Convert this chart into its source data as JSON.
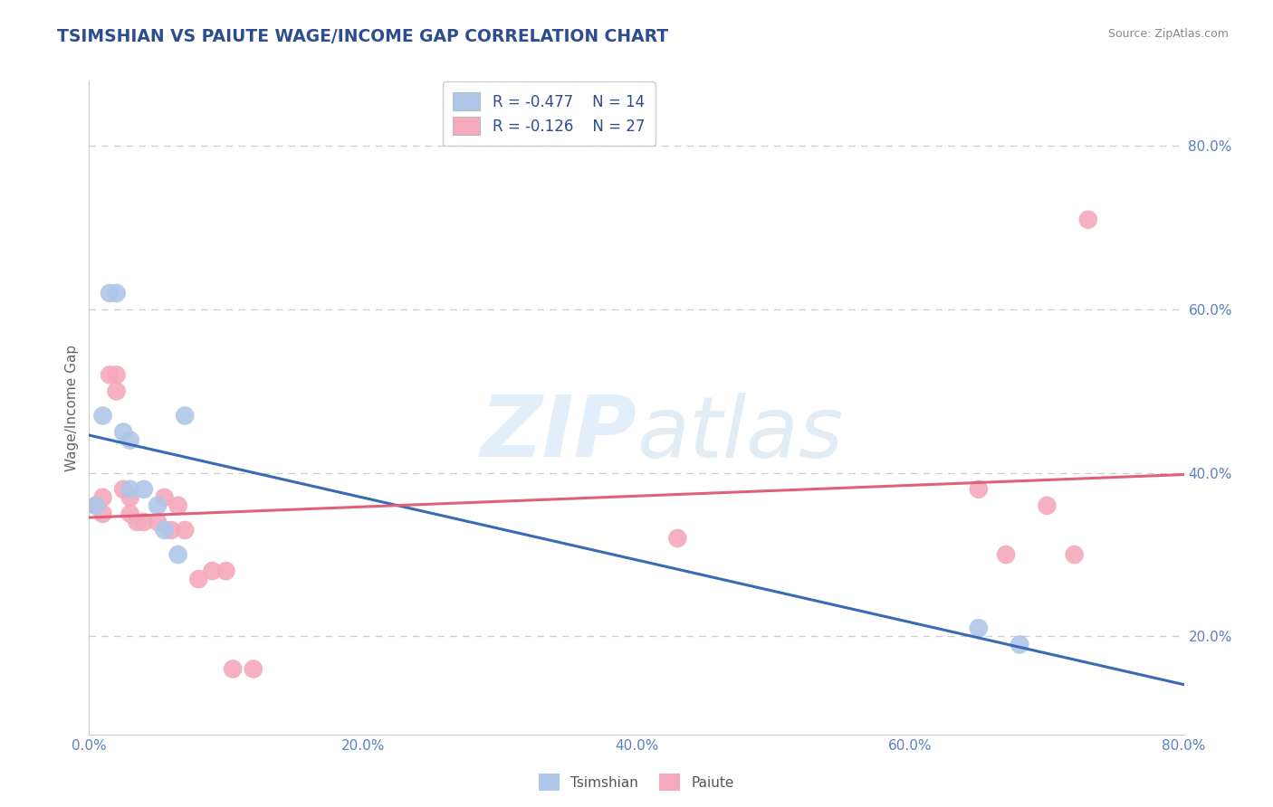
{
  "title": "TSIMSHIAN VS PAIUTE WAGE/INCOME GAP CORRELATION CHART",
  "source_text": "Source: ZipAtlas.com",
  "ylabel": "Wage/Income Gap",
  "xlim": [
    0.0,
    0.8
  ],
  "ylim": [
    0.08,
    0.88
  ],
  "watermark": "ZIPatlas",
  "legend_r1": "R = -0.477",
  "legend_n1": "N = 14",
  "legend_r2": "R = -0.126",
  "legend_n2": "N = 27",
  "tsimshian_color": "#aec7e8",
  "paiute_color": "#f4a9bc",
  "tsimshian_line_color": "#3a6ab5",
  "paiute_line_color": "#e0607a",
  "tsimshian_x": [
    0.005,
    0.01,
    0.015,
    0.02,
    0.025,
    0.03,
    0.03,
    0.04,
    0.05,
    0.055,
    0.065,
    0.07,
    0.65,
    0.68
  ],
  "tsimshian_y": [
    0.36,
    0.47,
    0.62,
    0.62,
    0.45,
    0.44,
    0.38,
    0.38,
    0.36,
    0.33,
    0.3,
    0.47,
    0.21,
    0.19
  ],
  "paiute_x": [
    0.005,
    0.01,
    0.01,
    0.015,
    0.02,
    0.02,
    0.025,
    0.03,
    0.03,
    0.035,
    0.04,
    0.05,
    0.055,
    0.06,
    0.065,
    0.07,
    0.08,
    0.09,
    0.1,
    0.105,
    0.12,
    0.43,
    0.65,
    0.67,
    0.7,
    0.72,
    0.73
  ],
  "paiute_y": [
    0.36,
    0.37,
    0.35,
    0.52,
    0.52,
    0.5,
    0.38,
    0.37,
    0.35,
    0.34,
    0.34,
    0.34,
    0.37,
    0.33,
    0.36,
    0.33,
    0.27,
    0.28,
    0.28,
    0.16,
    0.16,
    0.32,
    0.38,
    0.3,
    0.36,
    0.3,
    0.71
  ],
  "background_color": "#ffffff",
  "plot_bg_color": "#ffffff",
  "title_color": "#2d4d8e",
  "source_color": "#888888",
  "tick_label_color": "#5b7fc1",
  "grid_color": "#cccccc",
  "legend_color": "#2d4d8e"
}
